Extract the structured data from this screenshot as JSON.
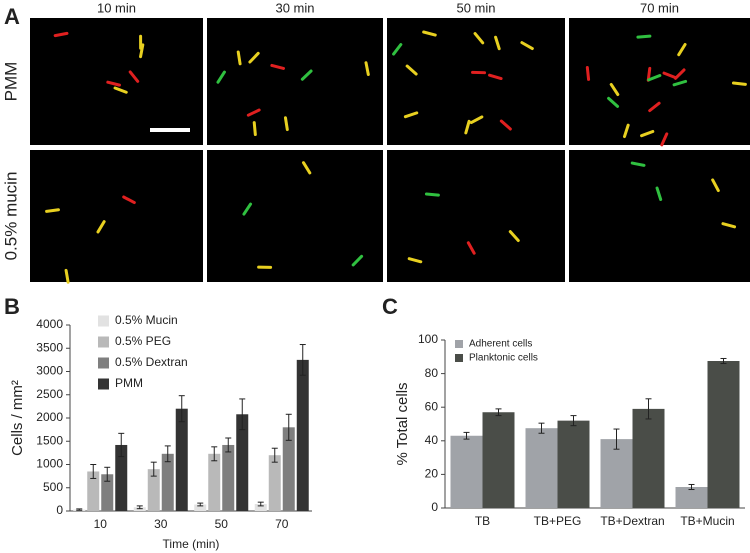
{
  "panel_a": {
    "label": "A",
    "columns": [
      "10 min",
      "30 min",
      "50 min",
      "70 min"
    ],
    "rows": [
      "PMM",
      "0.5% mucin"
    ]
  },
  "chart_data": [
    {
      "type": "bar",
      "label": "B",
      "ylabel": "Cells / mm²",
      "xlabel": "Time (min)",
      "categories": [
        "10",
        "30",
        "50",
        "70"
      ],
      "series": [
        {
          "name": "0.5% Mucin",
          "color": "#e2e2e2",
          "values": [
            30,
            80,
            140,
            150
          ],
          "errors": [
            15,
            30,
            30,
            40
          ]
        },
        {
          "name": "0.5% PEG",
          "color": "#b9b9b9",
          "values": [
            850,
            900,
            1230,
            1200
          ],
          "errors": [
            150,
            150,
            150,
            150
          ]
        },
        {
          "name": "0.5% Dextran",
          "color": "#7f7f7f",
          "values": [
            790,
            1230,
            1420,
            1800
          ],
          "errors": [
            150,
            170,
            150,
            280
          ]
        },
        {
          "name": "PMM",
          "color": "#333333",
          "values": [
            1420,
            2200,
            2080,
            3250
          ],
          "errors": [
            250,
            280,
            330,
            330
          ]
        }
      ],
      "ylim": [
        0,
        4000
      ],
      "yticks": [
        0,
        500,
        1000,
        1500,
        2000,
        2500,
        3000,
        3500,
        4000
      ],
      "legend": "top-left"
    },
    {
      "type": "bar",
      "label": "C",
      "ylabel": "% Total cells",
      "categories": [
        "TB",
        "TB+PEG",
        "TB+Dextran",
        "TB+Mucin"
      ],
      "series": [
        {
          "name": "Adherent cells",
          "color": "#a0a3a8",
          "values": [
            43,
            47.5,
            41,
            12.5
          ],
          "errors": [
            2,
            3,
            6,
            1.5
          ]
        },
        {
          "name": "Planktonic cells",
          "color": "#4a4d48",
          "values": [
            57,
            52,
            59,
            87.5
          ],
          "errors": [
            2,
            3,
            6,
            1.5
          ]
        }
      ],
      "ylim": [
        0,
        100
      ],
      "yticks": [
        0,
        20,
        40,
        60,
        80,
        100
      ],
      "legend": "top-left"
    }
  ]
}
